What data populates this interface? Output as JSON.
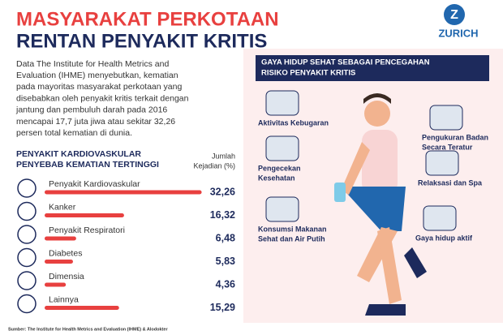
{
  "header": {
    "title_lines": [
      "MASYARAKAT PERKOTAAN",
      "RENTAN PENYAKIT KRITIS"
    ],
    "brand": "ZURICH"
  },
  "intro_lines": [
    "Data The Institute for Health Metrics and",
    "Evaluation (IHME) menyebutkan, kematian",
    "pada mayoritas masyarakat perkotaan yang",
    "disebabkan oleh penyakit kritis terkait dengan",
    "jantung dan pembuluh darah pada 2016",
    "mencapai 17,7 juta jiwa atau sekitar 32,26",
    "persen total kematian di dunia."
  ],
  "chart_data": {
    "type": "bar",
    "title_lines": [
      "PENYAKIT KARDIOVASKULAR",
      "PENYEBAB KEMATIAN TERTINGGI"
    ],
    "value_header_lines": [
      "Jumlah",
      "Kejadian (%)"
    ],
    "categories": [
      "Penyakit Kardiovaskular",
      "Kanker",
      "Penyakit Respiratori",
      "Diabetes",
      "Dimensia",
      "Lainnya"
    ],
    "values": [
      32.26,
      16.32,
      6.48,
      5.83,
      4.36,
      15.29
    ],
    "value_labels": [
      "32,26",
      "16,32",
      "6,48",
      "5,83",
      "4,36",
      "15,29"
    ],
    "color": "#e8403f"
  },
  "lifestyle": {
    "title_lines": [
      "GAYA HIDUP SEHAT SEBAGAI PENCEGAHAN",
      "RISIKO PENYAKIT KRITIS"
    ],
    "items": [
      [
        "Aktivitas Kebugaran"
      ],
      [
        "Pengukuran Badan",
        "Secara Teratur"
      ],
      [
        "Pengecekan",
        "Kesehatan"
      ],
      [
        "Relaksasi dan Spa"
      ],
      [
        "Konsumsi Makanan",
        "Sehat dan Air Putih"
      ],
      [
        "Gaya hidup aktif"
      ]
    ]
  },
  "source": "Sumber: The Institute for Health Metrics and Evaluation (IHME) & Alodokter"
}
